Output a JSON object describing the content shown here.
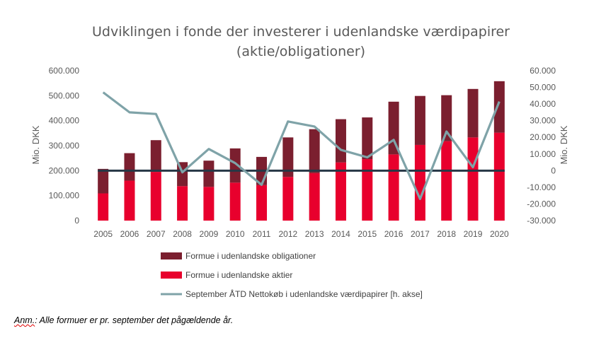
{
  "chart_data": {
    "type": "bar",
    "title_lines": [
      "Udviklingen i fonde der investerer i udenlandske værdipapirer",
      "(aktie/obligationer)"
    ],
    "categories": [
      "2005",
      "2006",
      "2007",
      "2008",
      "2009",
      "2010",
      "2011",
      "2012",
      "2013",
      "2014",
      "2015",
      "2016",
      "2017",
      "2018",
      "2019",
      "2020"
    ],
    "stacked": true,
    "series": [
      {
        "name": "Formue i udenlandske aktier",
        "type": "bar",
        "color": "#e8002d",
        "axis": "left",
        "values": [
          109000,
          160000,
          195000,
          138000,
          135000,
          152000,
          142000,
          175000,
          190000,
          233000,
          246000,
          265000,
          303000,
          318000,
          333000,
          352000
        ]
      },
      {
        "name": "Formue i udenlandske obligationer",
        "type": "bar",
        "color": "#7b1f2f",
        "axis": "left",
        "values": [
          98000,
          110000,
          127000,
          96000,
          105000,
          137000,
          113000,
          158000,
          176000,
          173000,
          167000,
          211000,
          196000,
          184000,
          194000,
          206000
        ]
      },
      {
        "name": "September ÅTD Nettokøb i udenlandske værdipapirer [h. akse]",
        "type": "line",
        "color": "#7fa3a8",
        "axis": "right",
        "values": [
          47000,
          35000,
          34000,
          -1000,
          13000,
          4500,
          -8500,
          29500,
          26500,
          12500,
          8000,
          18500,
          -17000,
          23500,
          2000,
          41500
        ]
      }
    ],
    "zero_line_color": "#263746",
    "y_left": {
      "label": "Mio. DKK",
      "min": 0,
      "max": 600000,
      "ticks": [
        "0",
        "100.000",
        "200.000",
        "300.000",
        "400.000",
        "500.000",
        "600.000"
      ]
    },
    "y_right": {
      "label": "Mio. DKK",
      "min": -30000,
      "max": 60000,
      "ticks": [
        "-30.000",
        "-20.000",
        "-10.000",
        "0",
        "10.000",
        "20.000",
        "30.000",
        "40.000",
        "50.000",
        "60.000"
      ]
    },
    "legend": {
      "placement": "bottom",
      "order": [
        "Formue i udenlandske obligationer",
        "Formue i udenlandske aktier",
        "September ÅTD Nettokøb i udenlandske værdipapirer [h. akse]"
      ]
    },
    "grid": false
  },
  "note": {
    "prefix": "Anm.",
    "text": ": Alle formuer er pr. september det pågældende år."
  }
}
